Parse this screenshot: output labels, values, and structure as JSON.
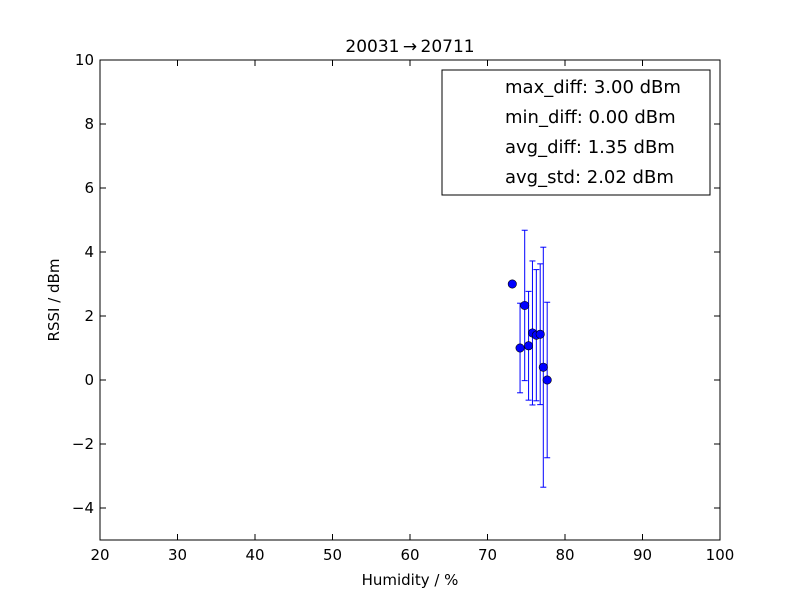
{
  "chart_data": {
    "type": "scatter",
    "title": "20031 → 20711",
    "xlabel": "Humidity / %",
    "ylabel": "RSSI / dBm",
    "xlim": [
      20,
      100
    ],
    "ylim": [
      -5,
      10
    ],
    "xticks": [
      20,
      30,
      40,
      50,
      60,
      70,
      80,
      90,
      100
    ],
    "yticks": [
      -4,
      -2,
      0,
      2,
      4,
      6,
      8,
      10
    ],
    "grid": false,
    "legend_position": "top-right",
    "legend_entries": [
      "max_diff: 3.00 dBm",
      "min_diff: 0.00 dBm",
      "avg_diff: 1.35 dBm",
      "avg_std: 2.02 dBm"
    ],
    "series": [
      {
        "color": "#0000ff",
        "points": [
          {
            "x": 73.2,
            "y": 3.0,
            "err": null
          },
          {
            "x": 74.2,
            "y": 1.0,
            "err": 1.4
          },
          {
            "x": 74.8,
            "y": 2.33,
            "err": 2.35
          },
          {
            "x": 75.3,
            "y": 1.07,
            "err": 1.7
          },
          {
            "x": 75.8,
            "y": 1.47,
            "err": 2.25
          },
          {
            "x": 76.3,
            "y": 1.4,
            "err": 2.05
          },
          {
            "x": 76.8,
            "y": 1.43,
            "err": 2.2
          },
          {
            "x": 77.2,
            "y": 0.4,
            "err": 3.75
          },
          {
            "x": 77.7,
            "y": 0.0,
            "err": 2.43
          }
        ]
      }
    ]
  }
}
